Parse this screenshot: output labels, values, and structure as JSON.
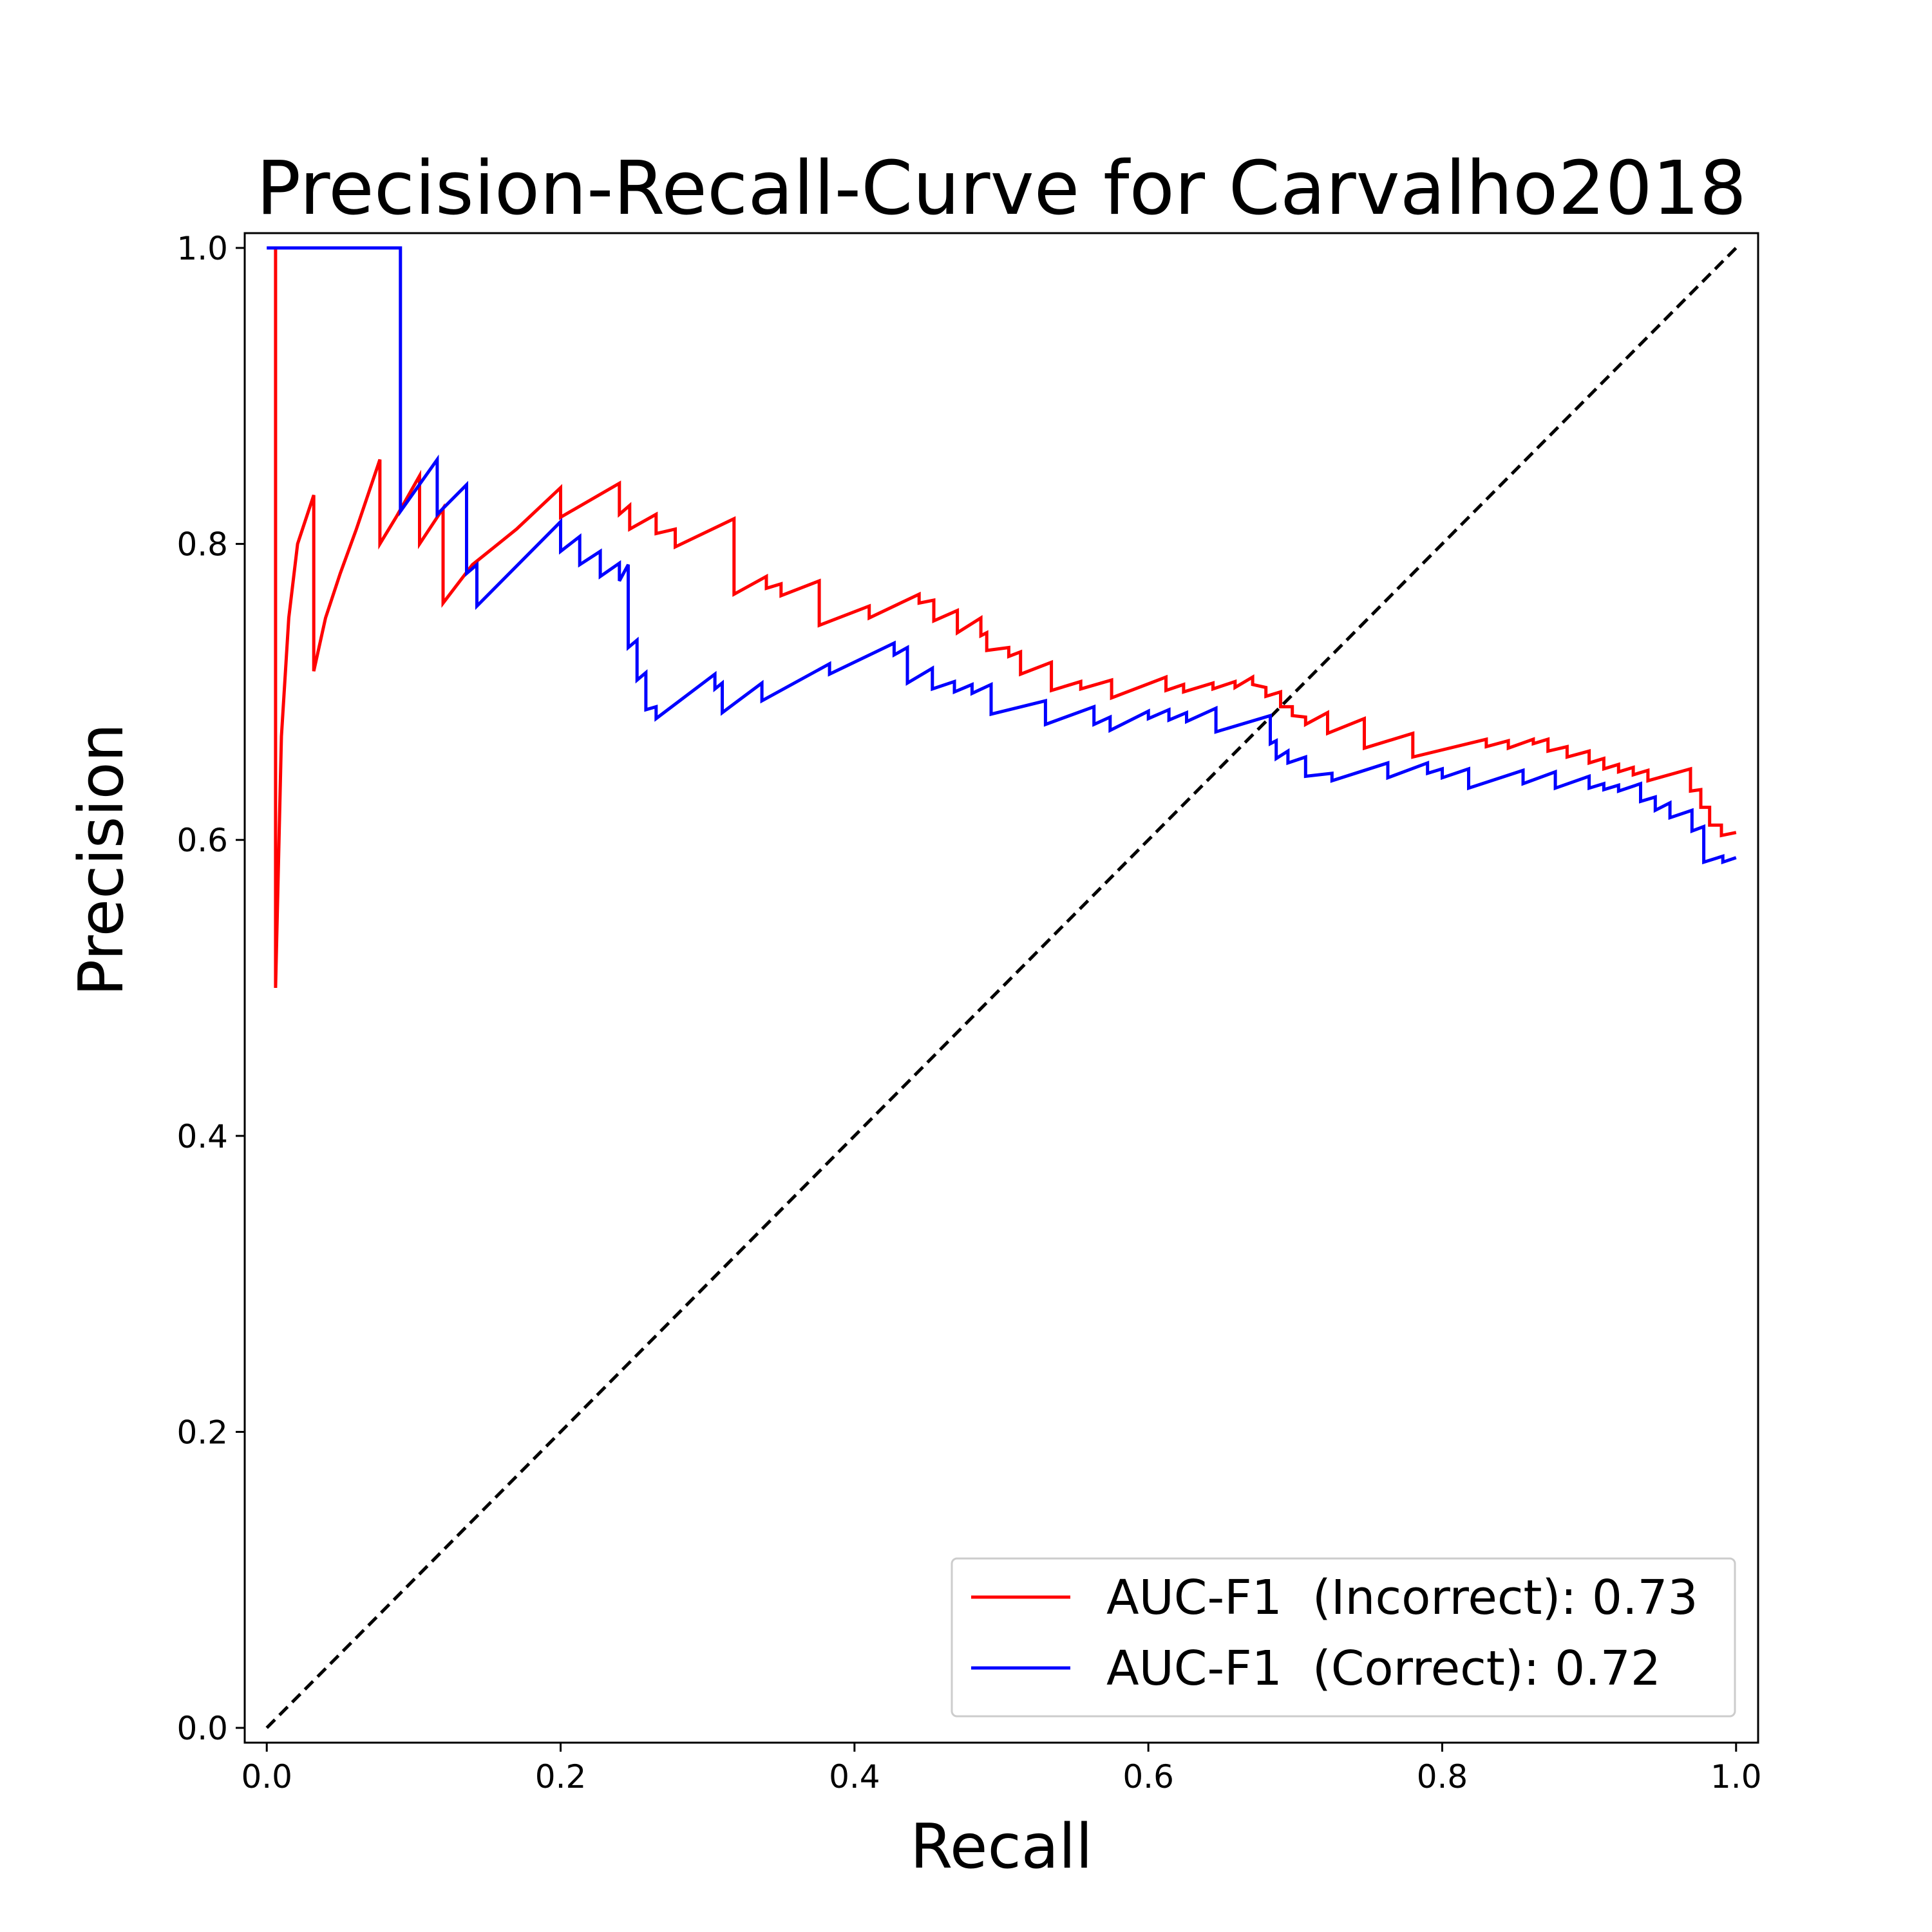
{
  "chart_data": {
    "type": "line",
    "title": "Precision-Recall-Curve for Carvalho2018",
    "xlabel": "Recall",
    "ylabel": "Precision",
    "xlim": [
      -0.015,
      1.015
    ],
    "ylim": [
      -0.01,
      1.01
    ],
    "xticks": [
      "0.0",
      "0.2",
      "0.4",
      "0.6",
      "0.8",
      "1.0"
    ],
    "yticks": [
      "0.0",
      "0.2",
      "0.4",
      "0.6",
      "0.8",
      "1.0"
    ],
    "grid": false,
    "legend_position": "lower-right",
    "series": [
      {
        "name": "AUC-F1  (Incorrect): 0.73",
        "color": "#ff0000",
        "points": [
          [
            0.006,
            1.0
          ],
          [
            0.006,
            0.5
          ],
          [
            0.01,
            0.67
          ],
          [
            0.015,
            0.75
          ],
          [
            0.021,
            0.8
          ],
          [
            0.032,
            0.833
          ],
          [
            0.032,
            0.714
          ],
          [
            0.04,
            0.75
          ],
          [
            0.05,
            0.78
          ],
          [
            0.061,
            0.81
          ],
          [
            0.077,
            0.857
          ],
          [
            0.077,
            0.8
          ],
          [
            0.088,
            0.818
          ],
          [
            0.104,
            0.846
          ],
          [
            0.104,
            0.8
          ],
          [
            0.12,
            0.824
          ],
          [
            0.12,
            0.76
          ],
          [
            0.14,
            0.786
          ],
          [
            0.17,
            0.81
          ],
          [
            0.2,
            0.838
          ],
          [
            0.2,
            0.818
          ],
          [
            0.24,
            0.841
          ],
          [
            0.24,
            0.82
          ],
          [
            0.247,
            0.826
          ],
          [
            0.247,
            0.81
          ],
          [
            0.265,
            0.82
          ],
          [
            0.265,
            0.807
          ],
          [
            0.278,
            0.81
          ],
          [
            0.278,
            0.798
          ],
          [
            0.318,
            0.817
          ],
          [
            0.318,
            0.766
          ],
          [
            0.34,
            0.778
          ],
          [
            0.34,
            0.77
          ],
          [
            0.35,
            0.773
          ],
          [
            0.35,
            0.765
          ],
          [
            0.376,
            0.775
          ],
          [
            0.376,
            0.745
          ],
          [
            0.41,
            0.758
          ],
          [
            0.41,
            0.75
          ],
          [
            0.444,
            0.766
          ],
          [
            0.444,
            0.76
          ],
          [
            0.454,
            0.762
          ],
          [
            0.454,
            0.748
          ],
          [
            0.47,
            0.755
          ],
          [
            0.47,
            0.74
          ],
          [
            0.486,
            0.75
          ],
          [
            0.486,
            0.738
          ],
          [
            0.49,
            0.74
          ],
          [
            0.49,
            0.728
          ],
          [
            0.505,
            0.73
          ],
          [
            0.505,
            0.724
          ],
          [
            0.513,
            0.727
          ],
          [
            0.513,
            0.712
          ],
          [
            0.534,
            0.72
          ],
          [
            0.534,
            0.701
          ],
          [
            0.554,
            0.707
          ],
          [
            0.554,
            0.702
          ],
          [
            0.575,
            0.708
          ],
          [
            0.575,
            0.696
          ],
          [
            0.612,
            0.71
          ],
          [
            0.612,
            0.701
          ],
          [
            0.624,
            0.705
          ],
          [
            0.624,
            0.7
          ],
          [
            0.644,
            0.706
          ],
          [
            0.644,
            0.702
          ],
          [
            0.659,
            0.707
          ],
          [
            0.659,
            0.703
          ],
          [
            0.671,
            0.71
          ],
          [
            0.671,
            0.705
          ],
          [
            0.68,
            0.703
          ],
          [
            0.68,
            0.697
          ],
          [
            0.69,
            0.7
          ],
          [
            0.69,
            0.69
          ],
          [
            0.698,
            0.69
          ],
          [
            0.698,
            0.684
          ],
          [
            0.707,
            0.683
          ],
          [
            0.707,
            0.678
          ],
          [
            0.722,
            0.686
          ],
          [
            0.722,
            0.672
          ],
          [
            0.747,
            0.682
          ],
          [
            0.747,
            0.662
          ],
          [
            0.78,
            0.672
          ],
          [
            0.78,
            0.656
          ],
          [
            0.83,
            0.668
          ],
          [
            0.83,
            0.663
          ],
          [
            0.845,
            0.667
          ],
          [
            0.845,
            0.662
          ],
          [
            0.862,
            0.668
          ],
          [
            0.862,
            0.665
          ],
          [
            0.872,
            0.668
          ],
          [
            0.872,
            0.66
          ],
          [
            0.885,
            0.663
          ],
          [
            0.885,
            0.656
          ],
          [
            0.9,
            0.66
          ],
          [
            0.9,
            0.652
          ],
          [
            0.91,
            0.655
          ],
          [
            0.91,
            0.648
          ],
          [
            0.92,
            0.651
          ],
          [
            0.92,
            0.646
          ],
          [
            0.93,
            0.649
          ],
          [
            0.93,
            0.644
          ],
          [
            0.94,
            0.647
          ],
          [
            0.94,
            0.64
          ],
          [
            0.969,
            0.648
          ],
          [
            0.969,
            0.633
          ],
          [
            0.976,
            0.634
          ],
          [
            0.976,
            0.622
          ],
          [
            0.982,
            0.622
          ],
          [
            0.982,
            0.61
          ],
          [
            0.99,
            0.61
          ],
          [
            0.99,
            0.603
          ],
          [
            1.0,
            0.605
          ]
        ]
      },
      {
        "name": "AUC-F1  (Correct): 0.72",
        "color": "#0000ff",
        "points": [
          [
            0.0,
            1.0
          ],
          [
            0.091,
            1.0
          ],
          [
            0.091,
            0.822
          ],
          [
            0.116,
            0.857
          ],
          [
            0.116,
            0.82
          ],
          [
            0.136,
            0.84
          ],
          [
            0.136,
            0.78
          ],
          [
            0.143,
            0.786
          ],
          [
            0.143,
            0.758
          ],
          [
            0.165,
            0.78
          ],
          [
            0.2,
            0.815
          ],
          [
            0.2,
            0.795
          ],
          [
            0.213,
            0.805
          ],
          [
            0.213,
            0.786
          ],
          [
            0.227,
            0.795
          ],
          [
            0.227,
            0.778
          ],
          [
            0.24,
            0.787
          ],
          [
            0.24,
            0.775
          ],
          [
            0.246,
            0.786
          ],
          [
            0.246,
            0.73
          ],
          [
            0.252,
            0.735
          ],
          [
            0.252,
            0.708
          ],
          [
            0.258,
            0.713
          ],
          [
            0.258,
            0.688
          ],
          [
            0.265,
            0.69
          ],
          [
            0.265,
            0.682
          ],
          [
            0.305,
            0.712
          ],
          [
            0.305,
            0.702
          ],
          [
            0.31,
            0.706
          ],
          [
            0.31,
            0.686
          ],
          [
            0.337,
            0.706
          ],
          [
            0.337,
            0.694
          ],
          [
            0.383,
            0.719
          ],
          [
            0.383,
            0.712
          ],
          [
            0.427,
            0.733
          ],
          [
            0.427,
            0.725
          ],
          [
            0.436,
            0.73
          ],
          [
            0.436,
            0.706
          ],
          [
            0.453,
            0.716
          ],
          [
            0.453,
            0.702
          ],
          [
            0.468,
            0.707
          ],
          [
            0.468,
            0.7
          ],
          [
            0.48,
            0.705
          ],
          [
            0.48,
            0.699
          ],
          [
            0.493,
            0.705
          ],
          [
            0.493,
            0.685
          ],
          [
            0.53,
            0.694
          ],
          [
            0.53,
            0.678
          ],
          [
            0.563,
            0.69
          ],
          [
            0.563,
            0.678
          ],
          [
            0.574,
            0.683
          ],
          [
            0.574,
            0.674
          ],
          [
            0.6,
            0.687
          ],
          [
            0.6,
            0.682
          ],
          [
            0.614,
            0.688
          ],
          [
            0.614,
            0.681
          ],
          [
            0.626,
            0.686
          ],
          [
            0.626,
            0.68
          ],
          [
            0.646,
            0.689
          ],
          [
            0.646,
            0.673
          ],
          [
            0.683,
            0.684
          ],
          [
            0.683,
            0.665
          ],
          [
            0.687,
            0.667
          ],
          [
            0.687,
            0.655
          ],
          [
            0.695,
            0.66
          ],
          [
            0.695,
            0.652
          ],
          [
            0.707,
            0.656
          ],
          [
            0.707,
            0.643
          ],
          [
            0.725,
            0.645
          ],
          [
            0.725,
            0.64
          ],
          [
            0.763,
            0.652
          ],
          [
            0.763,
            0.642
          ],
          [
            0.79,
            0.652
          ],
          [
            0.79,
            0.645
          ],
          [
            0.8,
            0.648
          ],
          [
            0.8,
            0.642
          ],
          [
            0.818,
            0.648
          ],
          [
            0.818,
            0.635
          ],
          [
            0.855,
            0.647
          ],
          [
            0.855,
            0.638
          ],
          [
            0.877,
            0.646
          ],
          [
            0.877,
            0.635
          ],
          [
            0.9,
            0.643
          ],
          [
            0.9,
            0.635
          ],
          [
            0.91,
            0.638
          ],
          [
            0.91,
            0.634
          ],
          [
            0.92,
            0.637
          ],
          [
            0.92,
            0.633
          ],
          [
            0.935,
            0.638
          ],
          [
            0.935,
            0.626
          ],
          [
            0.945,
            0.629
          ],
          [
            0.945,
            0.62
          ],
          [
            0.955,
            0.625
          ],
          [
            0.955,
            0.615
          ],
          [
            0.97,
            0.62
          ],
          [
            0.97,
            0.606
          ],
          [
            0.978,
            0.609
          ],
          [
            0.978,
            0.585
          ],
          [
            0.991,
            0.589
          ],
          [
            0.991,
            0.585
          ],
          [
            1.0,
            0.588
          ]
        ]
      }
    ],
    "reference_line": {
      "points": [
        [
          0.0,
          0.0
        ],
        [
          1.0,
          1.0
        ]
      ],
      "color": "#000000",
      "style": "dashed"
    }
  }
}
